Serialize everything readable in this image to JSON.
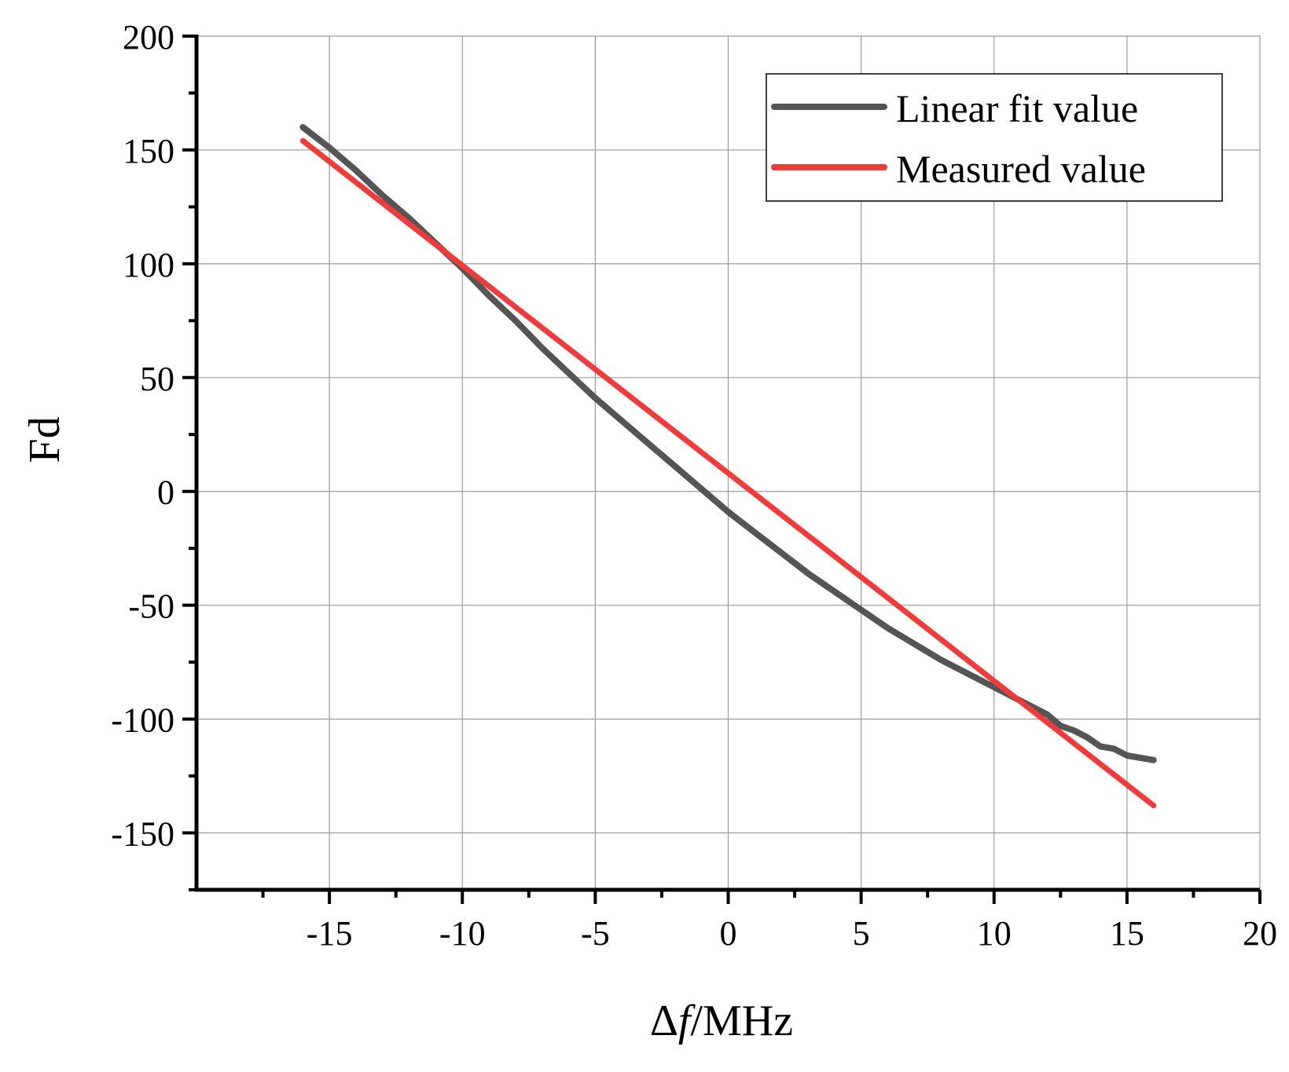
{
  "chart_data": {
    "type": "line",
    "title": "",
    "xlabel": {
      "prefix": "Δ",
      "italic": "f",
      "suffix": "/MHz"
    },
    "ylabel": "Fd",
    "xlim": [
      -20,
      20
    ],
    "ylim": [
      -175,
      200
    ],
    "grid": true,
    "legend_position": "top-right",
    "x_ticks": [
      -15,
      -10,
      -5,
      0,
      5,
      10,
      15,
      20
    ],
    "x_tick_labels": [
      "-15",
      "-10",
      "-5",
      "0",
      "5",
      "10",
      "15",
      "20"
    ],
    "y_ticks": [
      200,
      150,
      100,
      50,
      0,
      -50,
      -100,
      -150
    ],
    "y_tick_labels": [
      "200",
      "150",
      "100",
      "50",
      "0",
      "-50",
      "-100",
      "-150"
    ],
    "series": [
      {
        "name": "Linear fit value",
        "color": "#555555",
        "x": [
          -16,
          -15,
          -14,
          -13,
          -12,
          -11,
          -10,
          -9,
          -8,
          -7,
          -6,
          -5,
          -4,
          -3,
          -2,
          -1,
          0,
          1,
          2,
          3,
          4,
          5,
          6,
          7,
          8,
          9,
          10,
          11,
          12,
          12.5,
          13,
          13.5,
          14,
          14.5,
          15,
          15.5,
          16
        ],
        "y": [
          160,
          151,
          141,
          130,
          120,
          109,
          98,
          86,
          75,
          63,
          52,
          41,
          31,
          21,
          11,
          1,
          -9,
          -18,
          -27,
          -36,
          -44,
          -52,
          -60,
          -67,
          -74,
          -80,
          -86,
          -92,
          -98,
          -103,
          -105,
          -108,
          -112,
          -113,
          -116,
          -117,
          -118
        ]
      },
      {
        "name": "Measured value",
        "color": "#ee3b3b",
        "x": [
          -16,
          16
        ],
        "y": [
          154,
          -138
        ]
      }
    ]
  }
}
